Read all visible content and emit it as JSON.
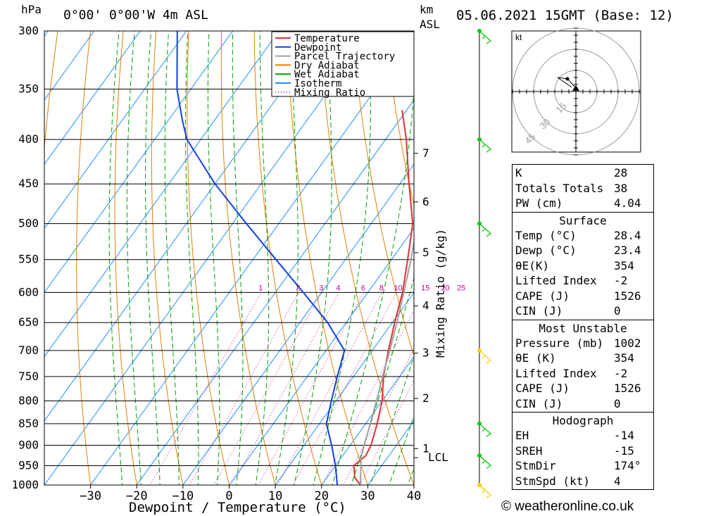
{
  "header": {
    "pressure_unit": "hPa",
    "location": "0°00' 0°00'W 4m ASL",
    "km_label": "km",
    "asl_label": "ASL",
    "datetime": "05.06.2021 15GMT (Base: 12)"
  },
  "chart_data": {
    "type": "line",
    "xlabel": "Dewpoint / Temperature (°C)",
    "ylabel": "hPa",
    "right_axis_label": "Mixing Ratio (g/kg)",
    "xlim": [
      -40,
      40
    ],
    "ylim": [
      1000,
      300
    ],
    "x_ticks": [
      "-30",
      "-20",
      "-10",
      "0",
      "10",
      "20",
      "30",
      "40"
    ],
    "pressure_levels": [
      300,
      350,
      400,
      450,
      500,
      550,
      600,
      650,
      700,
      750,
      800,
      850,
      900,
      950,
      1000
    ],
    "km_ticks": [
      {
        "label": "1",
        "p": 908
      },
      {
        "label": "2",
        "p": 795
      },
      {
        "label": "3",
        "p": 705
      },
      {
        "label": "4",
        "p": 622
      },
      {
        "label": "5",
        "p": 540
      },
      {
        "label": "6",
        "p": 472
      },
      {
        "label": "7",
        "p": 415
      }
    ],
    "lcl": {
      "label": "LCL",
      "p": 930
    },
    "mixing_ratio_labels": [
      "1",
      "2",
      "3",
      "4",
      "6",
      "8",
      "10",
      "15",
      "20",
      "25"
    ],
    "mixing_ratio_values": [
      1,
      2,
      3,
      4,
      6,
      8,
      10,
      15,
      20,
      25
    ],
    "legend": [
      {
        "name": "Temperature",
        "color": "#e03030",
        "style": "solid"
      },
      {
        "name": "Dewpoint",
        "color": "#1040e0",
        "style": "solid"
      },
      {
        "name": "Parcel Trajectory",
        "color": "#a0a0a0",
        "style": "solid"
      },
      {
        "name": "Dry Adiabat",
        "color": "#e08000",
        "style": "solid"
      },
      {
        "name": "Wet Adiabat",
        "color": "#00a000",
        "style": "solid"
      },
      {
        "name": "Isotherm",
        "color": "#1e90ff",
        "style": "solid"
      },
      {
        "name": "Mixing Ratio",
        "color": "#cc0099",
        "style": "dotted"
      }
    ],
    "legend_position": "top-right",
    "series": [
      {
        "name": "Temperature",
        "color": "#e03030",
        "points": [
          [
            1000,
            28.4
          ],
          [
            980,
            26.0
          ],
          [
            950,
            24.0
          ],
          [
            925,
            25.0
          ],
          [
            900,
            24.5
          ],
          [
            850,
            22.5
          ],
          [
            800,
            20.0
          ],
          [
            750,
            16.5
          ],
          [
            700,
            13.5
          ],
          [
            650,
            10.5
          ],
          [
            600,
            7.5
          ],
          [
            550,
            3.5
          ],
          [
            500,
            -1.0
          ],
          [
            450,
            -8.0
          ],
          [
            400,
            -15.5
          ],
          [
            370,
            -21.0
          ]
        ]
      },
      {
        "name": "Dewpoint",
        "color": "#1040e0",
        "points": [
          [
            1000,
            23.4
          ],
          [
            950,
            20.0
          ],
          [
            900,
            16.0
          ],
          [
            850,
            11.5
          ],
          [
            800,
            9.0
          ],
          [
            750,
            6.5
          ],
          [
            700,
            4.0
          ],
          [
            650,
            -4.0
          ],
          [
            600,
            -14.0
          ],
          [
            550,
            -25.0
          ],
          [
            500,
            -37.0
          ],
          [
            450,
            -50.0
          ],
          [
            400,
            -63.0
          ],
          [
            380,
            -67.0
          ],
          [
            350,
            -73.0
          ],
          [
            300,
            -82.0
          ]
        ]
      },
      {
        "name": "Parcel Trajectory",
        "color": "#a0a0a0",
        "points": [
          [
            1000,
            28.4
          ],
          [
            950,
            25.5
          ],
          [
            930,
            24.3
          ],
          [
            900,
            23.0
          ],
          [
            850,
            21.0
          ],
          [
            800,
            18.8
          ],
          [
            750,
            16.3
          ],
          [
            700,
            13.8
          ],
          [
            650,
            11.0
          ],
          [
            600,
            7.8
          ],
          [
            550,
            4.2
          ],
          [
            500,
            0.0
          ],
          [
            450,
            -5.0
          ],
          [
            400,
            -11.0
          ],
          [
            370,
            -15.0
          ]
        ]
      }
    ],
    "upper_series": {
      "name": "Temperature",
      "points": [
        [
          330,
          -28.0
        ],
        [
          300,
          -34.0
        ]
      ]
    }
  },
  "wind": {
    "levels": [
      {
        "p": 300,
        "color": "#00cc00"
      },
      {
        "p": 400,
        "color": "#00cc00"
      },
      {
        "p": 500,
        "color": "#00cc00"
      },
      {
        "p": 700,
        "color": "#ffcc00"
      },
      {
        "p": 850,
        "color": "#00cc00"
      },
      {
        "p": 925,
        "color": "#00cc00"
      },
      {
        "p": 1000,
        "color": "#ffcc00"
      }
    ]
  },
  "hodograph": {
    "unit": "kt",
    "rings": [
      "15",
      "30",
      "45"
    ]
  },
  "indices": {
    "top": [
      {
        "key": "K",
        "value": "28"
      },
      {
        "key": "Totals Totals",
        "value": "38"
      },
      {
        "key": "PW (cm)",
        "value": "4.04"
      }
    ],
    "surface": {
      "title": "Surface",
      "rows": [
        {
          "key": "Temp (°C)",
          "value": "28.4"
        },
        {
          "key": "Dewp (°C)",
          "value": "23.4"
        },
        {
          "key": "θE(K)",
          "value": "354"
        },
        {
          "key": "Lifted Index",
          "value": "-2"
        },
        {
          "key": "CAPE (J)",
          "value": "1526"
        },
        {
          "key": "CIN (J)",
          "value": "0"
        }
      ]
    },
    "most_unstable": {
      "title": "Most Unstable",
      "rows": [
        {
          "key": "Pressure (mb)",
          "value": "1002"
        },
        {
          "key": "θE (K)",
          "value": "354"
        },
        {
          "key": "Lifted Index",
          "value": "-2"
        },
        {
          "key": "CAPE (J)",
          "value": "1526"
        },
        {
          "key": "CIN (J)",
          "value": "0"
        }
      ]
    },
    "hodograph": {
      "title": "Hodograph",
      "rows": [
        {
          "key": "EH",
          "value": "-14"
        },
        {
          "key": "SREH",
          "value": "-15"
        },
        {
          "key": "StmDir",
          "value": "174°"
        },
        {
          "key": "StmSpd (kt)",
          "value": "4"
        }
      ]
    }
  },
  "copyright": "© weatheronline.co.uk"
}
